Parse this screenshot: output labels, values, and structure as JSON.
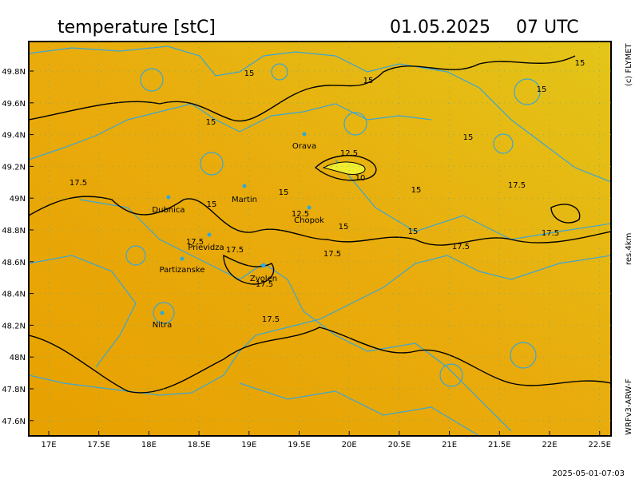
{
  "header": {
    "title": "temperature [stC]",
    "date": "01.05.2025",
    "time": "07 UTC"
  },
  "credits": {
    "copyright": "(c) FLYMET",
    "resolution": "res.4km",
    "model": "WRFv3-ARW-F"
  },
  "timestamp": "2025-05-01-07:03",
  "axes": {
    "lat": [
      "49.8N",
      "49.6N",
      "49.4N",
      "49.2N",
      "49N",
      "48.8N",
      "48.6N",
      "48.4N",
      "48.2N",
      "48N",
      "47.8N",
      "47.6N"
    ],
    "lon": [
      "17E",
      "17.5E",
      "18E",
      "18.5E",
      "19E",
      "19.5E",
      "20E",
      "20.5E",
      "21E",
      "21.5E",
      "22E",
      "22.5E"
    ]
  },
  "cities": [
    "Orava",
    "Martin",
    "Dubnica",
    "Chopok",
    "Prievidza",
    "Partizanske",
    "Zvolen",
    "Nitra"
  ],
  "contour_labels": [
    "15",
    "15",
    "15",
    "15",
    "15",
    "15",
    "12.5",
    "10",
    "17.5",
    "15",
    "15",
    "17.5",
    "15",
    "12.5",
    "15",
    "15",
    "17.5",
    "17.5",
    "17.5",
    "17.5",
    "17.5",
    "17.5",
    "17.5"
  ]
}
